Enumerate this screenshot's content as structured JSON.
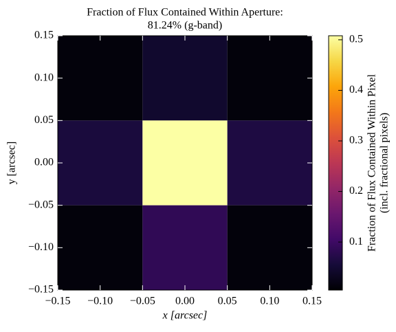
{
  "chart_data": {
    "type": "heatmap",
    "title": [
      "Fraction of Flux Contained Within Aperture:",
      "81.24% (g-band)"
    ],
    "x_label": "x [arcsec]",
    "y_label": "y [arcsec]",
    "x": [
      -0.1,
      0,
      0.1
    ],
    "y": [
      0.1,
      0,
      -0.1
    ],
    "z": [
      [
        0.012,
        0.045,
        0.012
      ],
      [
        0.06,
        0.508,
        0.065
      ],
      [
        0.012,
        0.085,
        0.012
      ]
    ],
    "xlim": [
      -0.15,
      0.15
    ],
    "ylim": [
      -0.15,
      0.15
    ],
    "xticks": [
      {
        "value": -0.15,
        "label": "−0.15"
      },
      {
        "value": -0.1,
        "label": "−0.10"
      },
      {
        "value": -0.05,
        "label": "−0.05"
      },
      {
        "value": 0,
        "label": "0.00"
      },
      0.05,
      {
        "value": 0.1,
        "label": "0.10"
      },
      0.15
    ],
    "yticks": [
      {
        "value": -0.15,
        "label": "−0.15"
      },
      {
        "value": -0.1,
        "label": "−0.10"
      },
      {
        "value": -0.05,
        "label": "−0.05"
      },
      {
        "value": 0,
        "label": "0.00"
      },
      0.05,
      {
        "value": 0.1,
        "label": "0.10"
      },
      0.15
    ],
    "colormap": "inferno",
    "clim": [
      0.005,
      0.508
    ],
    "cticks": [
      0.1,
      0.2,
      0.3,
      0.4,
      0.5
    ],
    "colorbar_label": [
      "Fraction of Flux Contained Within Pixel",
      "(incl. fractional pixels)"
    ]
  }
}
